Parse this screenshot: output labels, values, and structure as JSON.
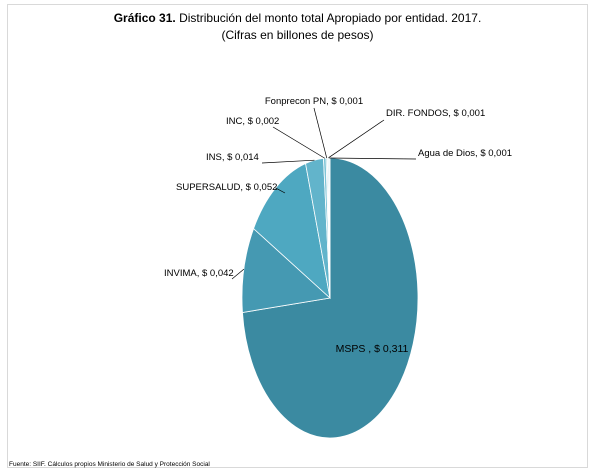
{
  "title": {
    "prefix": "Gráfico 31.",
    "text": "Distribución del monto total Apropiado por entidad.  2017.",
    "subtitle": "(Cifras en billones de pesos)"
  },
  "source": "Fuente: SIIF. Cálculos propios Ministerio de Salud y Protección Social",
  "chart_data": {
    "type": "pie",
    "title": "Gráfico 31. Distribución del monto total Apropiado por entidad.  2017.",
    "subtitle": "(Cifras en billones de pesos)",
    "legend": "none",
    "slices": [
      {
        "name": "MSPS",
        "value": 0.311,
        "label": "MSPS  , $ 0,311",
        "color": "#3b8aa1"
      },
      {
        "name": "INVIMA",
        "value": 0.042,
        "label": "INVIMA, $ 0,042",
        "color": "#4599b2"
      },
      {
        "name": "SUPERSALUD",
        "value": 0.052,
        "label": "SUPERSALUD, $ 0,052",
        "color": "#4ea8c1"
      },
      {
        "name": "INS",
        "value": 0.014,
        "label": "INS, $ 0,014",
        "color": "#62b4cb"
      },
      {
        "name": "INC",
        "value": 0.002,
        "label": "INC, $ 0,002",
        "color": "#7ec4d6"
      },
      {
        "name": "Fonprecon PN",
        "value": 0.001,
        "label": "Fonprecon PN, $ 0,001",
        "color": "#9fd4e1"
      },
      {
        "name": "DIR. FONDOS",
        "value": 0.001,
        "label": "DIR. FONDOS, $ 0,001",
        "color": "#bfe2ec"
      },
      {
        "name": "Agua de Dios",
        "value": 0.001,
        "label": "Agua de Dios, $ 0,001",
        "color": "#dff0f5"
      }
    ]
  }
}
